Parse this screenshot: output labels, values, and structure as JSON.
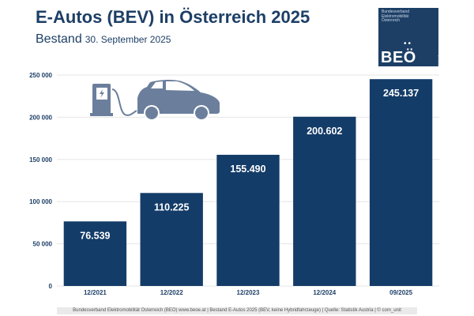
{
  "header": {
    "title": "E-Autos (BEV) in Österreich 2025",
    "subtitle_main": "Bestand",
    "subtitle_date": "30. September 2025"
  },
  "logo": {
    "org_name": "Bundesverband\nElektromobilität\nÖsterreich",
    "dots": "••",
    "name": "BEÖ",
    "url": "beoe.at"
  },
  "illustration": {
    "icons": [
      "ev-charger-icon",
      "car-icon"
    ],
    "color": "#6b7f9c"
  },
  "chart_data": {
    "type": "bar",
    "title": "E-Autos (BEV) in Österreich 2025",
    "subtitle": "Bestand 30. September 2025",
    "categories": [
      "12/2021",
      "12/2022",
      "12/2023",
      "12/2024",
      "09/2025"
    ],
    "values": [
      76539,
      110225,
      155490,
      200602,
      245137
    ],
    "data_labels": [
      "76.539",
      "110.225",
      "155.490",
      "200.602",
      "245.137"
    ],
    "xlabel": "",
    "ylabel": "",
    "ylim": [
      0,
      250000
    ],
    "yticks": [
      0,
      50000,
      100000,
      150000,
      200000,
      250000
    ],
    "ytick_labels": [
      "0",
      "50 000",
      "100 000",
      "150 000",
      "200 000",
      "250 000"
    ],
    "grid": true,
    "legend": "none",
    "bar_color": "#143c68",
    "grid_color": "#e6e6e6",
    "axis_text_color": "#1d3f66"
  },
  "footer": {
    "text": "Bundesverband Elektromobilität Österreich (BEÖ) www.beoe.at | Bestand E-Autos 2025 (BEV, keine Hybridfahrzeuge) | Quelle: Statistik Austria | © com_unit"
  }
}
